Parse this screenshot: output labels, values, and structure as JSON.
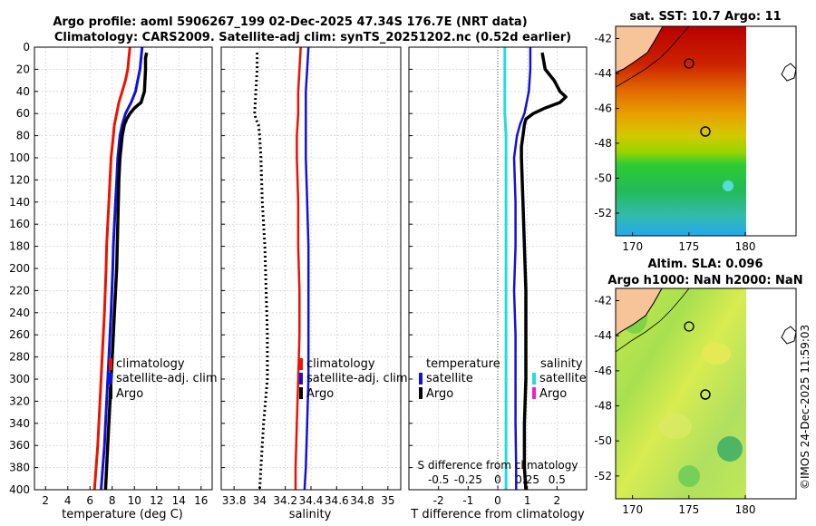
{
  "titles": {
    "line1": "Argo profile: aoml 5906267_199 02-Dec-2025 47.34S 176.7E (NRT data)",
    "line2": "Climatology: CARS2009. Satellite-adj clim: synTS_20251202.nc (0.52d earlier)",
    "sst": "sat. SST: 10.7 Argo: 11",
    "sla1": "Altim. SLA: 0.096",
    "sla2": "Argo h1000: NaN h2000: NaN",
    "credit": "©IMOS 24-Dec-2025 11:59:03"
  },
  "colors": {
    "climatology": "#ee1100",
    "satellite": "#1111dd",
    "argo": "#000000",
    "sal_sat": "#22dddd",
    "sal_argo": "#ee22cc",
    "land": "#f7c49a"
  },
  "depth_ticks": [
    "0",
    "20",
    "40",
    "60",
    "80",
    "100",
    "120",
    "140",
    "160",
    "180",
    "200",
    "220",
    "240",
    "260",
    "280",
    "300",
    "320",
    "340",
    "360",
    "380",
    "400"
  ],
  "chart_data": [
    {
      "type": "line",
      "name": "temperature",
      "xlabel": "temperature (deg C)",
      "ylabel": "",
      "xlim": [
        1,
        17
      ],
      "ylim": [
        400,
        0
      ],
      "x_ticks": [
        "2",
        "4",
        "6",
        "8",
        "10",
        "12",
        "14",
        "16"
      ],
      "legend": [
        "climatology",
        "satellite-adj. clim",
        "Argo"
      ],
      "series": [
        {
          "name": "climatology",
          "depth": [
            0,
            10,
            20,
            30,
            40,
            50,
            60,
            70,
            80,
            90,
            100,
            120,
            140,
            160,
            180,
            200,
            240,
            280,
            320,
            360,
            400
          ],
          "values": [
            9.6,
            9.5,
            9.4,
            9.2,
            8.9,
            8.6,
            8.4,
            8.2,
            8.1,
            8.0,
            7.9,
            7.8,
            7.7,
            7.6,
            7.5,
            7.45,
            7.3,
            7.1,
            6.9,
            6.7,
            6.4
          ]
        },
        {
          "name": "satellite-adj. clim",
          "depth": [
            0,
            10,
            20,
            30,
            40,
            50,
            60,
            70,
            80,
            90,
            100,
            120,
            140,
            160,
            180,
            200,
            240,
            280,
            320,
            360,
            400
          ],
          "values": [
            10.7,
            10.6,
            10.5,
            10.3,
            10.1,
            9.7,
            9.2,
            8.9,
            8.7,
            8.6,
            8.5,
            8.4,
            8.3,
            8.2,
            8.1,
            8.05,
            7.9,
            7.7,
            7.5,
            7.3,
            7.0
          ]
        },
        {
          "name": "Argo",
          "depth": [
            5,
            10,
            20,
            30,
            40,
            50,
            55,
            60,
            65,
            70,
            80,
            90,
            100,
            120,
            140,
            160,
            180,
            200,
            240,
            280,
            320,
            360,
            400
          ],
          "values": [
            11.1,
            11.0,
            11.0,
            10.95,
            10.9,
            10.6,
            10.0,
            9.6,
            9.3,
            9.1,
            8.9,
            8.8,
            8.7,
            8.6,
            8.55,
            8.5,
            8.45,
            8.4,
            8.2,
            8.0,
            7.8,
            7.6,
            7.4
          ]
        }
      ]
    },
    {
      "type": "line",
      "name": "salinity",
      "xlabel": "salinity",
      "ylabel": "",
      "xlim": [
        33.7,
        35.1
      ],
      "ylim": [
        400,
        0
      ],
      "x_ticks": [
        "33.8",
        "34",
        "34.2",
        "34.4",
        "34.6",
        "34.8",
        "35"
      ],
      "legend": [
        "climatology",
        "satellite-adj. clim",
        "Argo"
      ],
      "series": [
        {
          "name": "climatology",
          "depth": [
            0,
            20,
            40,
            60,
            80,
            100,
            140,
            180,
            220,
            260,
            300,
            340,
            380,
            400
          ],
          "values": [
            34.32,
            34.31,
            34.3,
            34.3,
            34.29,
            34.29,
            34.3,
            34.3,
            34.31,
            34.31,
            34.3,
            34.29,
            34.28,
            34.28
          ]
        },
        {
          "name": "satellite-adj. clim",
          "depth": [
            0,
            20,
            40,
            60,
            80,
            100,
            140,
            180,
            220,
            260,
            300,
            340,
            380,
            400
          ],
          "values": [
            34.38,
            34.37,
            34.36,
            34.36,
            34.36,
            34.36,
            34.37,
            34.38,
            34.38,
            34.38,
            34.38,
            34.37,
            34.36,
            34.35
          ]
        },
        {
          "name": "Argo",
          "depth": [
            5,
            20,
            40,
            60,
            65,
            70,
            80,
            100,
            140,
            180,
            220,
            260,
            300,
            340,
            380,
            400
          ],
          "values": [
            33.98,
            33.98,
            33.97,
            33.96,
            33.97,
            33.99,
            34.0,
            34.01,
            34.02,
            34.04,
            34.05,
            34.06,
            34.06,
            34.03,
            34.01,
            34.0
          ]
        }
      ]
    },
    {
      "type": "line",
      "name": "difference from climatology",
      "xlabel": "T difference from climatology",
      "s_axis_label": "S difference from climatology",
      "xlim": [
        -3,
        3
      ],
      "ylim": [
        400,
        0
      ],
      "x_ticks": [
        {
          "v": -2,
          "t": "-2"
        },
        {
          "v": -1,
          "t": "-1"
        },
        {
          "v": 0,
          "t": "0"
        },
        {
          "v": 1,
          "t": "1"
        },
        {
          "v": 2,
          "t": "2"
        }
      ],
      "s_ticks": [
        {
          "v": -0.5,
          "t": "-0.5"
        },
        {
          "v": -0.25,
          "t": "-0.25"
        },
        {
          "v": 0,
          "t": "0"
        },
        {
          "v": 0.25,
          "t": "0.25"
        },
        {
          "v": 0.5,
          "t": "0.5"
        }
      ],
      "s_scale": 4,
      "legend_temperature": {
        "header": "temperature",
        "items": [
          "satellite",
          "Argo"
        ]
      },
      "legend_salinity": {
        "header": "salinity",
        "items": [
          "satellite",
          "Argo"
        ]
      },
      "series": [
        {
          "name": "T satellite",
          "depth": [
            0,
            20,
            40,
            60,
            70,
            80,
            90,
            100,
            140,
            180,
            220,
            260,
            300,
            340,
            380,
            400
          ],
          "values": [
            1.1,
            1.1,
            1.05,
            0.9,
            0.75,
            0.65,
            0.6,
            0.55,
            0.6,
            0.6,
            0.55,
            0.6,
            0.6,
            0.6,
            0.62,
            0.62
          ]
        },
        {
          "name": "T Argo",
          "depth": [
            5,
            20,
            30,
            40,
            45,
            50,
            55,
            60,
            65,
            70,
            80,
            90,
            100,
            140,
            180,
            220,
            260,
            300,
            340,
            380,
            400
          ],
          "values": [
            1.5,
            1.6,
            1.9,
            2.1,
            2.3,
            2.1,
            1.6,
            1.2,
            0.95,
            0.9,
            0.85,
            0.8,
            0.8,
            0.85,
            0.9,
            0.95,
            0.95,
            0.95,
            0.9,
            0.9,
            0.95
          ]
        },
        {
          "name": "S satellite",
          "depth": [
            0,
            20,
            40,
            60,
            80,
            100,
            140,
            180,
            220,
            260,
            300,
            340,
            380,
            400
          ],
          "values": [
            0.06,
            0.06,
            0.06,
            0.06,
            0.07,
            0.07,
            0.07,
            0.07,
            0.07,
            0.07,
            0.07,
            0.07,
            0.07,
            0.07
          ]
        },
        {
          "name": "S zero",
          "depth": [
            0,
            400
          ],
          "values": [
            0,
            0
          ]
        }
      ]
    }
  ],
  "maps": {
    "lon_ticks": [
      "170",
      "175",
      "180"
    ],
    "lat_ticks": [
      "-42",
      "-44",
      "-46",
      "-48",
      "-50",
      "-52"
    ],
    "lon_range": [
      168.5,
      184.5
    ],
    "lat_range": [
      -53.3,
      -41.3
    ],
    "profile_location": {
      "lon": 176.7,
      "lat": -47.34
    }
  }
}
